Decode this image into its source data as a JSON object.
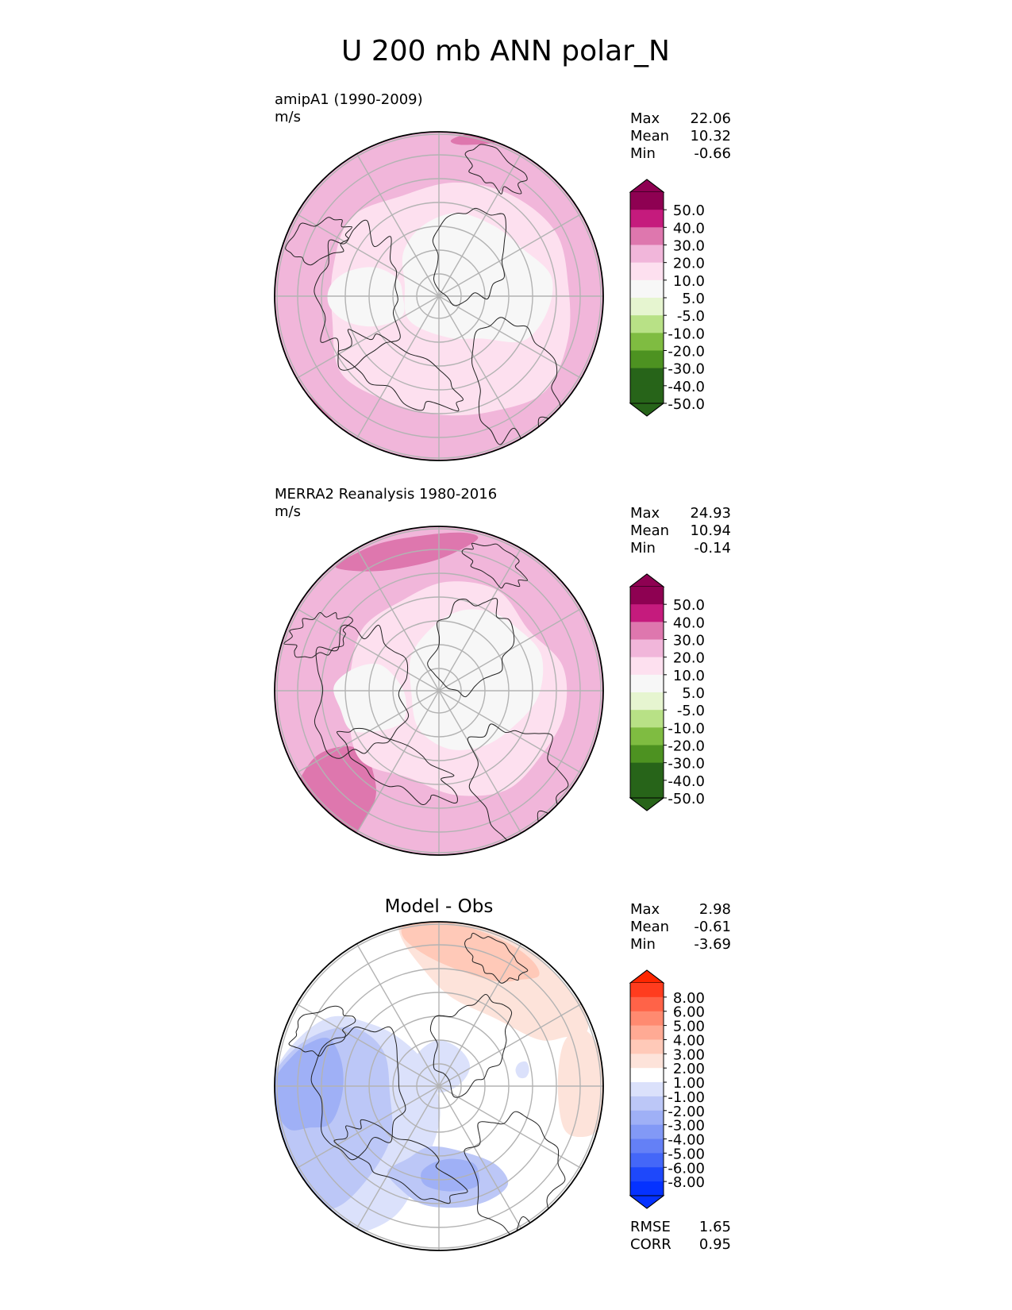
{
  "figure": {
    "title": "U 200 mb ANN polar_N"
  },
  "chart_data": [
    {
      "type": "heatmap",
      "projection": "north-polar-stereographic",
      "title": "",
      "subtitle_line1": "amipA1 (1990-2009)",
      "subtitle_line2": "m/s",
      "stats": [
        {
          "label": "Max",
          "value": "22.06"
        },
        {
          "label": "Mean",
          "value": "10.32"
        },
        {
          "label": "Min",
          "value": "-0.66"
        }
      ],
      "colorbar": {
        "tick_labels": [
          "50.0",
          "40.0",
          "30.0",
          "20.0",
          "10.0",
          "5.0",
          "-5.0",
          "-10.0",
          "-20.0",
          "-30.0",
          "-40.0",
          "-50.0"
        ],
        "colors": [
          "#8e0152",
          "#c51b7d",
          "#de77ae",
          "#f1b6da",
          "#fde0ef",
          "#f7f7f7",
          "#e6f5d0",
          "#b8e186",
          "#7fbc41",
          "#4d9221",
          "#276419",
          "#276419"
        ],
        "over_color": "#8e0152",
        "under_color": "#276419"
      }
    },
    {
      "type": "heatmap",
      "projection": "north-polar-stereographic",
      "title": "",
      "subtitle_line1": "MERRA2 Reanalysis 1980-2016",
      "subtitle_line2": "m/s",
      "stats": [
        {
          "label": "Max",
          "value": "24.93"
        },
        {
          "label": "Mean",
          "value": "10.94"
        },
        {
          "label": "Min",
          "value": "-0.14"
        }
      ],
      "colorbar": {
        "tick_labels": [
          "50.0",
          "40.0",
          "30.0",
          "20.0",
          "10.0",
          "5.0",
          "-5.0",
          "-10.0",
          "-20.0",
          "-30.0",
          "-40.0",
          "-50.0"
        ],
        "colors": [
          "#8e0152",
          "#c51b7d",
          "#de77ae",
          "#f1b6da",
          "#fde0ef",
          "#f7f7f7",
          "#e6f5d0",
          "#b8e186",
          "#7fbc41",
          "#4d9221",
          "#276419",
          "#276419"
        ],
        "over_color": "#8e0152",
        "under_color": "#276419"
      }
    },
    {
      "type": "heatmap",
      "projection": "north-polar-stereographic",
      "title": "Model - Obs",
      "subtitle_line1": "",
      "subtitle_line2": "",
      "stats": [
        {
          "label": "Max",
          "value": "2.98"
        },
        {
          "label": "Mean",
          "value": "-0.61"
        },
        {
          "label": "Min",
          "value": "-3.69"
        }
      ],
      "extra_stats": [
        {
          "label": "RMSE",
          "value": "1.65"
        },
        {
          "label": "CORR",
          "value": "0.95"
        }
      ],
      "colorbar": {
        "tick_labels": [
          "8.00",
          "6.00",
          "5.00",
          "4.00",
          "3.00",
          "2.00",
          "1.00",
          "-1.00",
          "-2.00",
          "-3.00",
          "-4.00",
          "-5.00",
          "-6.00",
          "-8.00"
        ],
        "colors": [
          "#ff3c1e",
          "#ff6348",
          "#ff8a70",
          "#ffaa94",
          "#ffc9b8",
          "#fde3da",
          "#ffffff",
          "#dbe1fb",
          "#bcc7f7",
          "#9fb0f6",
          "#8299f6",
          "#6480f6",
          "#4467f8",
          "#1e48fb",
          "#0532ff"
        ],
        "over_color": "#ff2600",
        "under_color": "#0532ff"
      }
    }
  ]
}
